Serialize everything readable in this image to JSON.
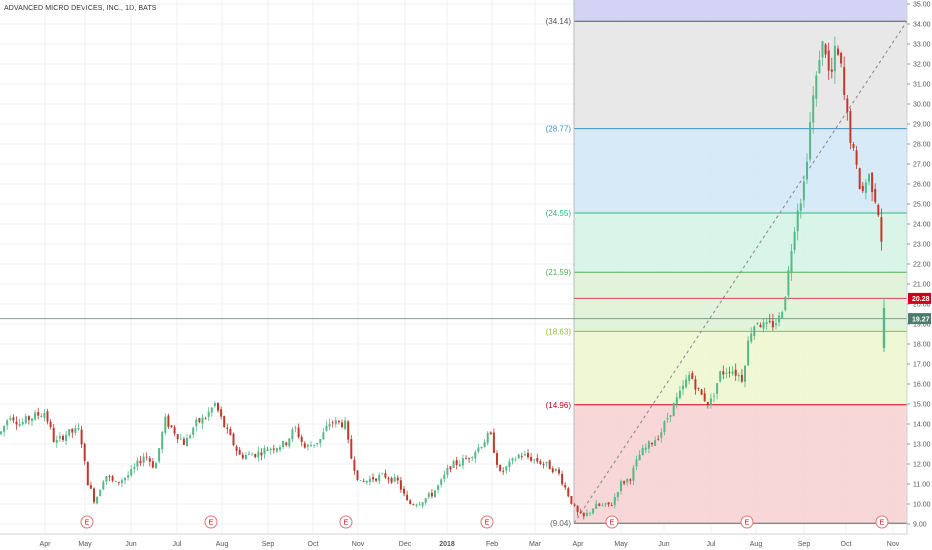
{
  "header": {
    "title": "ADVANCED MICRO DEVICES, INC., 1D, BATS"
  },
  "chart_data": {
    "type": "candlestick",
    "ylim": [
      8.5,
      35.2
    ],
    "y_ticks": [
      "9.00",
      "10.00",
      "11.00",
      "12.00",
      "13.00",
      "14.00",
      "15.00",
      "16.00",
      "17.00",
      "18.00",
      "19.00",
      "20.00",
      "21.00",
      "22.00",
      "23.00",
      "24.00",
      "25.00",
      "26.00",
      "27.00",
      "28.00",
      "29.00",
      "30.00",
      "31.00",
      "32.00",
      "33.00",
      "34.00",
      "35.00"
    ],
    "x_ticks": [
      "Apr",
      "May",
      "Jun",
      "Jul",
      "Aug",
      "Sep",
      "Oct",
      "Nov",
      "Dec",
      "2018",
      "Feb",
      "Mar",
      "Apr",
      "May",
      "Jun",
      "Jul",
      "Aug",
      "Sep",
      "Oct",
      "Nov"
    ],
    "bold_x_ticks": [
      "2018"
    ],
    "price_labels": [
      {
        "value": 20.28,
        "text": "20.28",
        "color": "#d0021b"
      },
      {
        "value": 19.27,
        "text": "19.27",
        "color": "#4a7c6b"
      }
    ],
    "earnings_markers": [
      "E",
      "E",
      "E",
      "E",
      "E",
      "E",
      "E"
    ],
    "earnings_months": [
      "May",
      "Jul",
      "Oct",
      "Jan",
      "Apr",
      "Jul",
      "Oct"
    ],
    "fib_levels": [
      {
        "value": 34.14,
        "label": "(34.14)",
        "color": "#555555",
        "fill": "#e5e5e5"
      },
      {
        "value": 28.77,
        "label": "(28.77)",
        "color": "#3d8fc7",
        "fill": "#d3e8f6"
      },
      {
        "value": 24.55,
        "label": "(24.55)",
        "color": "#2eb87b",
        "fill": "#d5f3e6"
      },
      {
        "value": 21.59,
        "label": "(21.59)",
        "color": "#4caf50",
        "fill": "#dff2d8"
      },
      {
        "value": 18.63,
        "label": "(18.63)",
        "color": "#8fbd33",
        "fill": "#eef6d0"
      },
      {
        "value": 14.96,
        "label": "(14.96)",
        "color": "#d0021b",
        "fill": "#f6d3d3"
      },
      {
        "value": 9.04,
        "label": "(9.04)",
        "color": "#666666",
        "fill": "#f6d3d3"
      }
    ],
    "fib_top_fill": "#d3d3f6",
    "up_color": "#53b987",
    "down_color": "#c0392b",
    "trend_line": {
      "from": {
        "date": "Apr 2018",
        "y": 9.04
      },
      "to": {
        "date": "Nov 2018",
        "y": 34.14
      }
    },
    "series_path": [
      [
        0,
        13.5
      ],
      [
        10,
        14.5
      ],
      [
        20,
        14.0
      ],
      [
        30,
        14.3
      ],
      [
        45,
        14.6
      ],
      [
        55,
        13.0
      ],
      [
        65,
        13.5
      ],
      [
        80,
        13.7
      ],
      [
        87,
        11.2
      ],
      [
        95,
        10.1
      ],
      [
        105,
        11.5
      ],
      [
        115,
        11.0
      ],
      [
        130,
        11.5
      ],
      [
        145,
        12.5
      ],
      [
        155,
        11.8
      ],
      [
        165,
        14.2
      ],
      [
        175,
        13.6
      ],
      [
        185,
        13.0
      ],
      [
        195,
        14.0
      ],
      [
        205,
        14.3
      ],
      [
        215,
        15.0
      ],
      [
        225,
        13.8
      ],
      [
        240,
        12.4
      ],
      [
        255,
        12.5
      ],
      [
        270,
        12.8
      ],
      [
        285,
        13.0
      ],
      [
        295,
        13.8
      ],
      [
        305,
        12.8
      ],
      [
        320,
        13.2
      ],
      [
        330,
        14.1
      ],
      [
        345,
        14.0
      ],
      [
        350,
        12.5
      ],
      [
        360,
        11.0
      ],
      [
        372,
        11.3
      ],
      [
        385,
        11.4
      ],
      [
        398,
        11.1
      ],
      [
        408,
        10.0
      ],
      [
        420,
        10.1
      ],
      [
        432,
        10.5
      ],
      [
        440,
        11.0
      ],
      [
        450,
        11.9
      ],
      [
        465,
        12.2
      ],
      [
        478,
        12.8
      ],
      [
        490,
        13.5
      ],
      [
        500,
        11.5
      ],
      [
        510,
        12.0
      ],
      [
        520,
        12.5
      ],
      [
        530,
        12.3
      ],
      [
        545,
        12.0
      ],
      [
        558,
        11.6
      ],
      [
        568,
        10.5
      ],
      [
        576,
        9.6
      ],
      [
        583,
        9.3
      ],
      [
        595,
        9.9
      ],
      [
        605,
        9.9
      ],
      [
        612,
        10.0
      ],
      [
        620,
        11.0
      ],
      [
        630,
        11.3
      ],
      [
        640,
        12.5
      ],
      [
        650,
        13.0
      ],
      [
        660,
        13.5
      ],
      [
        670,
        14.6
      ],
      [
        680,
        15.5
      ],
      [
        690,
        16.5
      ],
      [
        700,
        15.5
      ],
      [
        710,
        15.0
      ],
      [
        720,
        16.5
      ],
      [
        730,
        16.8
      ],
      [
        742,
        16.3
      ],
      [
        750,
        18.6
      ],
      [
        757,
        19.2
      ],
      [
        765,
        18.8
      ],
      [
        773,
        19.0
      ],
      [
        780,
        19.3
      ],
      [
        787,
        21.0
      ],
      [
        793,
        23.5
      ],
      [
        798,
        25.0
      ],
      [
        803,
        25.6
      ],
      [
        808,
        28.0
      ],
      [
        812,
        30.0
      ],
      [
        816,
        31.0
      ],
      [
        820,
        32.8
      ],
      [
        825,
        33.0
      ],
      [
        830,
        31.0
      ],
      [
        835,
        32.5
      ],
      [
        840,
        32.2
      ],
      [
        845,
        30.0
      ],
      [
        850,
        28.5
      ],
      [
        855,
        27.0
      ],
      [
        862,
        25.5
      ],
      [
        868,
        26.5
      ],
      [
        873,
        25.8
      ],
      [
        878,
        24.8
      ],
      [
        882,
        23.0
      ]
    ],
    "last_bar": {
      "date": "Oct 2018",
      "open": 17.8,
      "close": 19.8,
      "high": 20.3,
      "low": 17.6
    }
  }
}
